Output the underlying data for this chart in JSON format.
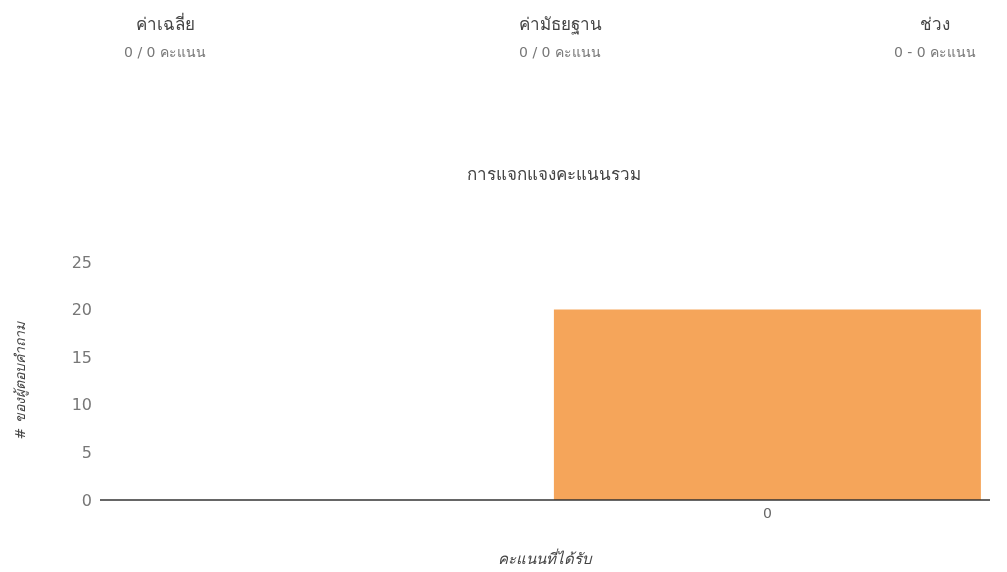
{
  "chart_data": {
    "type": "bar",
    "title": "การแจกแจงคะแนนรวม",
    "annotations": [
      "ค่าเฉลี่ย",
      "0 / 0 คะแนน",
      "ค่ามัธยฐาน",
      "0 / 0 คะแนน",
      "ช่วง",
      "0 - 0 คะแนน"
    ],
    "xlabel": "คะแนนที่ได้รับ",
    "ylabel": "# ของผู้ตอบคำถาม",
    "categories": [
      null,
      "0"
    ],
    "values": [
      null,
      20
    ],
    "color": "#f5a55a",
    "ylim": [
      0,
      25
    ],
    "yticks": [
      0,
      5,
      10,
      15,
      20,
      25
    ],
    "grid": false,
    "legend": false
  }
}
